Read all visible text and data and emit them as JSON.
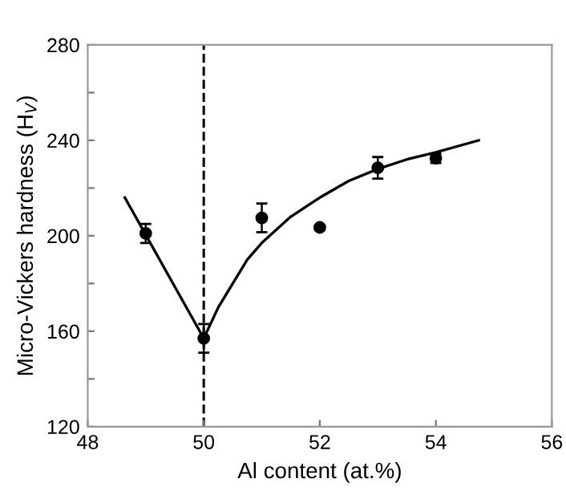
{
  "chart_data": {
    "type": "scatter",
    "xlabel": "Al content (at.%)",
    "ylabel": "Micro-Vickers hardness (H$_{V}$)",
    "xlim": [
      48,
      56
    ],
    "xticks": [
      48,
      50,
      52,
      54,
      56
    ],
    "ylim": [
      120,
      280
    ],
    "yticks": [
      120,
      {
        "value": 140,
        "label": null
      },
      160,
      {
        "value": 180,
        "label": null
      },
      200,
      {
        "value": 220,
        "label": null
      },
      240,
      {
        "value": 260,
        "label": null
      },
      280
    ],
    "grid": false,
    "legend": false,
    "series": [
      {
        "marker": "circle",
        "color": "#000000",
        "x": [
          49,
          50,
          51,
          52,
          53,
          54
        ],
        "values": [
          201,
          157,
          207.5,
          203.5,
          228.5,
          232.5
        ],
        "errors": [
          4,
          6,
          6,
          1,
          4.5,
          2
        ]
      },
      {
        "type": "line",
        "color": "#000000",
        "marker": "none",
        "x": [
          48.64,
          50
        ],
        "values": [
          216,
          157
        ]
      },
      {
        "type": "line",
        "color": "#000000",
        "marker": "none",
        "x": [
          50,
          50.25,
          50.5,
          50.75,
          51,
          51.5,
          52,
          52.5,
          53,
          53.5,
          54,
          54.74
        ],
        "values": [
          157,
          170,
          180,
          190,
          197,
          208,
          216,
          223,
          228,
          232,
          235,
          240
        ]
      }
    ],
    "ref_lines": [
      {
        "axis": "x",
        "value": 50,
        "color": "#000000",
        "line_style": "dashed"
      }
    ]
  }
}
